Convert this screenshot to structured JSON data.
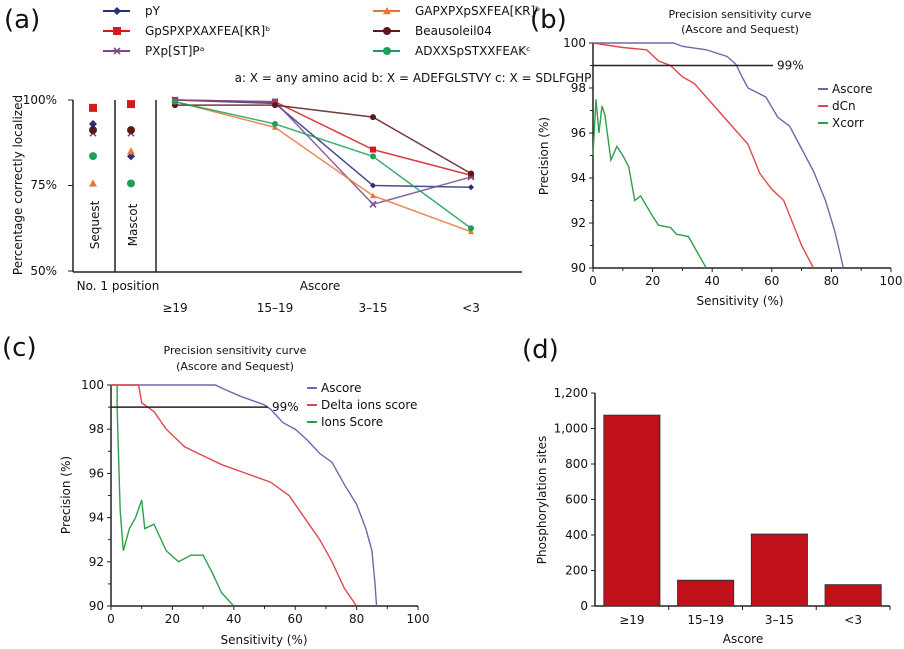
{
  "chart_data": [
    {
      "panel": "(a)",
      "type": "line",
      "ylabel": "Percentage correctly localized",
      "yticks": [
        "100%",
        "75%",
        "50%"
      ],
      "ylim": [
        50,
        100
      ],
      "group_labels": {
        "sequest": "Sequest",
        "mascot": "Mascot",
        "no1": "No. 1 position",
        "ascore": "Ascore"
      },
      "categories": [
        "≥19",
        "15–19",
        "3–15",
        "<3"
      ],
      "footnote": "a: X = any amino acid b: X = ADEFGLSTVY c: X = SDLFGHP",
      "series": [
        {
          "name": "pY",
          "color": "#2b2d7a",
          "marker": "diamond",
          "sequest": 93,
          "mascot": 83.5,
          "values": [
            100,
            99,
            75,
            74.5
          ]
        },
        {
          "name": "GpSPXPXAXFEA[KR]ᵇ",
          "color": "#d7191c",
          "marker": "square",
          "sequest": 97.7,
          "mascot": 98.8,
          "values": [
            100,
            99.5,
            85.5,
            78
          ]
        },
        {
          "name": "PXp[ST]Pᵃ",
          "color": "#7b4a8e",
          "marker": "x",
          "sequest": 90.3,
          "mascot": 90.3,
          "values": [
            100,
            99.5,
            69.5,
            77.5
          ]
        },
        {
          "name": "GAPXPXpSXFEA[KR]ᵇ",
          "color": "#e8743b",
          "marker": "triangle",
          "sequest": 75.6,
          "mascot": 85,
          "values": [
            99.5,
            92,
            72,
            61.5
          ]
        },
        {
          "name": "Beausoleil04",
          "color": "#5a1a1a",
          "marker": "circle",
          "sequest": 91.2,
          "mascot": 91.2,
          "values": [
            98.5,
            98.5,
            95,
            78.5
          ]
        },
        {
          "name": "ADXXSpSTXXFEAKᶜ",
          "color": "#1e9e5a",
          "marker": "circle",
          "sequest": 83.6,
          "mascot": 75.6,
          "values": [
            99.5,
            93,
            83.5,
            62.5
          ]
        }
      ]
    },
    {
      "panel": "(b)",
      "type": "line",
      "title": "Precision sensitivity curve",
      "subtitle": "(Ascore and Sequest)",
      "xlabel": "Sensitivity (%)",
      "ylabel": "Precision (%)",
      "xlim": [
        0,
        100
      ],
      "ylim": [
        90,
        100
      ],
      "xticks": [
        0,
        20,
        40,
        60,
        80,
        100
      ],
      "yticks": [
        90,
        92,
        94,
        96,
        98,
        100
      ],
      "reference": {
        "value": 99,
        "label": "99%"
      },
      "legend": "right",
      "series": [
        {
          "name": "Ascore",
          "color": "#6a6aa8",
          "points": [
            [
              0,
              100
            ],
            [
              27,
              100
            ],
            [
              30,
              99.85
            ],
            [
              38,
              99.7
            ],
            [
              45,
              99.4
            ],
            [
              48,
              99.05
            ],
            [
              50,
              98.5
            ],
            [
              52,
              98
            ],
            [
              58,
              97.6
            ],
            [
              62,
              96.7
            ],
            [
              66,
              96.3
            ],
            [
              70,
              95.3
            ],
            [
              74,
              94.3
            ],
            [
              78,
              93
            ],
            [
              81,
              91.7
            ],
            [
              83,
              90.6
            ],
            [
              84,
              90
            ]
          ]
        },
        {
          "name": "dCn",
          "color": "#e0474c",
          "points": [
            [
              0,
              100
            ],
            [
              10,
              99.8
            ],
            [
              18,
              99.7
            ],
            [
              22,
              99.2
            ],
            [
              26,
              99
            ],
            [
              30,
              98.5
            ],
            [
              34,
              98.2
            ],
            [
              40,
              97.3
            ],
            [
              46,
              96.4
            ],
            [
              52,
              95.5
            ],
            [
              56,
              94.2
            ],
            [
              60,
              93.5
            ],
            [
              64,
              93
            ],
            [
              67,
              92
            ],
            [
              70,
              91
            ],
            [
              74,
              90
            ]
          ]
        },
        {
          "name": "Xcorr",
          "color": "#2fa04a",
          "points": [
            [
              0,
              95
            ],
            [
              1,
              97.5
            ],
            [
              2,
              96
            ],
            [
              3,
              97.2
            ],
            [
              4,
              96.8
            ],
            [
              6,
              94.8
            ],
            [
              8,
              95.4
            ],
            [
              10,
              95
            ],
            [
              12,
              94.5
            ],
            [
              14,
              93
            ],
            [
              16,
              93.2
            ],
            [
              20,
              92.3
            ],
            [
              22,
              91.9
            ],
            [
              26,
              91.8
            ],
            [
              28,
              91.5
            ],
            [
              32,
              91.4
            ],
            [
              35,
              90.7
            ],
            [
              38,
              90
            ]
          ]
        }
      ]
    },
    {
      "panel": "(c)",
      "type": "line",
      "title": "Precision sensitivity curve",
      "subtitle": "(Ascore and Sequest)",
      "xlabel": "Sensitivity (%)",
      "ylabel": "Precision (%)",
      "xlim": [
        0,
        100
      ],
      "ylim": [
        90,
        100
      ],
      "xticks": [
        0,
        20,
        40,
        60,
        80,
        100
      ],
      "yticks": [
        90,
        92,
        94,
        96,
        98,
        100
      ],
      "reference": {
        "value": 99,
        "label": "99%"
      },
      "legend": "top-right",
      "series": [
        {
          "name": "Ascore",
          "color": "#6a6aa8",
          "points": [
            [
              0,
              100
            ],
            [
              34,
              100
            ],
            [
              37,
              99.8
            ],
            [
              42,
              99.5
            ],
            [
              50,
              99.1
            ],
            [
              52,
              98.9
            ],
            [
              56,
              98.3
            ],
            [
              60,
              98
            ],
            [
              64,
              97.5
            ],
            [
              68,
              96.9
            ],
            [
              72,
              96.5
            ],
            [
              76,
              95.5
            ],
            [
              80,
              94.6
            ],
            [
              83,
              93.5
            ],
            [
              85,
              92.5
            ],
            [
              86,
              91
            ],
            [
              86.5,
              90
            ]
          ]
        },
        {
          "name": "Delta ions score",
          "color": "#e0474c",
          "points": [
            [
              0,
              100
            ],
            [
              9,
              100
            ],
            [
              10,
              99.2
            ],
            [
              14,
              98.8
            ],
            [
              18,
              98
            ],
            [
              24,
              97.2
            ],
            [
              30,
              96.8
            ],
            [
              36,
              96.4
            ],
            [
              44,
              96
            ],
            [
              52,
              95.6
            ],
            [
              58,
              95
            ],
            [
              62,
              94.2
            ],
            [
              68,
              93
            ],
            [
              72,
              92
            ],
            [
              76,
              90.8
            ],
            [
              80,
              90
            ]
          ]
        },
        {
          "name": "Ions Score",
          "color": "#2fa04a",
          "points": [
            [
              2,
              100
            ],
            [
              2,
              99
            ],
            [
              2.5,
              96.6
            ],
            [
              3,
              94.3
            ],
            [
              4,
              92.5
            ],
            [
              6,
              93.5
            ],
            [
              8,
              94
            ],
            [
              10,
              94.8
            ],
            [
              11,
              93.5
            ],
            [
              14,
              93.7
            ],
            [
              18,
              92.5
            ],
            [
              22,
              92
            ],
            [
              26,
              92.3
            ],
            [
              30,
              92.3
            ],
            [
              33,
              91.5
            ],
            [
              36,
              90.6
            ],
            [
              40,
              90
            ]
          ]
        }
      ]
    },
    {
      "panel": "(d)",
      "type": "bar",
      "xlabel": "Ascore",
      "ylabel": "Phosphorylation sites",
      "categories": [
        "≥19",
        "15–19",
        "3–15",
        "<3"
      ],
      "values": [
        1075,
        145,
        405,
        120
      ],
      "ylim": [
        0,
        1200
      ],
      "yticks": [
        "0",
        "200",
        "400",
        "600",
        "800",
        "1,000",
        "1,200"
      ],
      "color": "#c0101a"
    }
  ]
}
